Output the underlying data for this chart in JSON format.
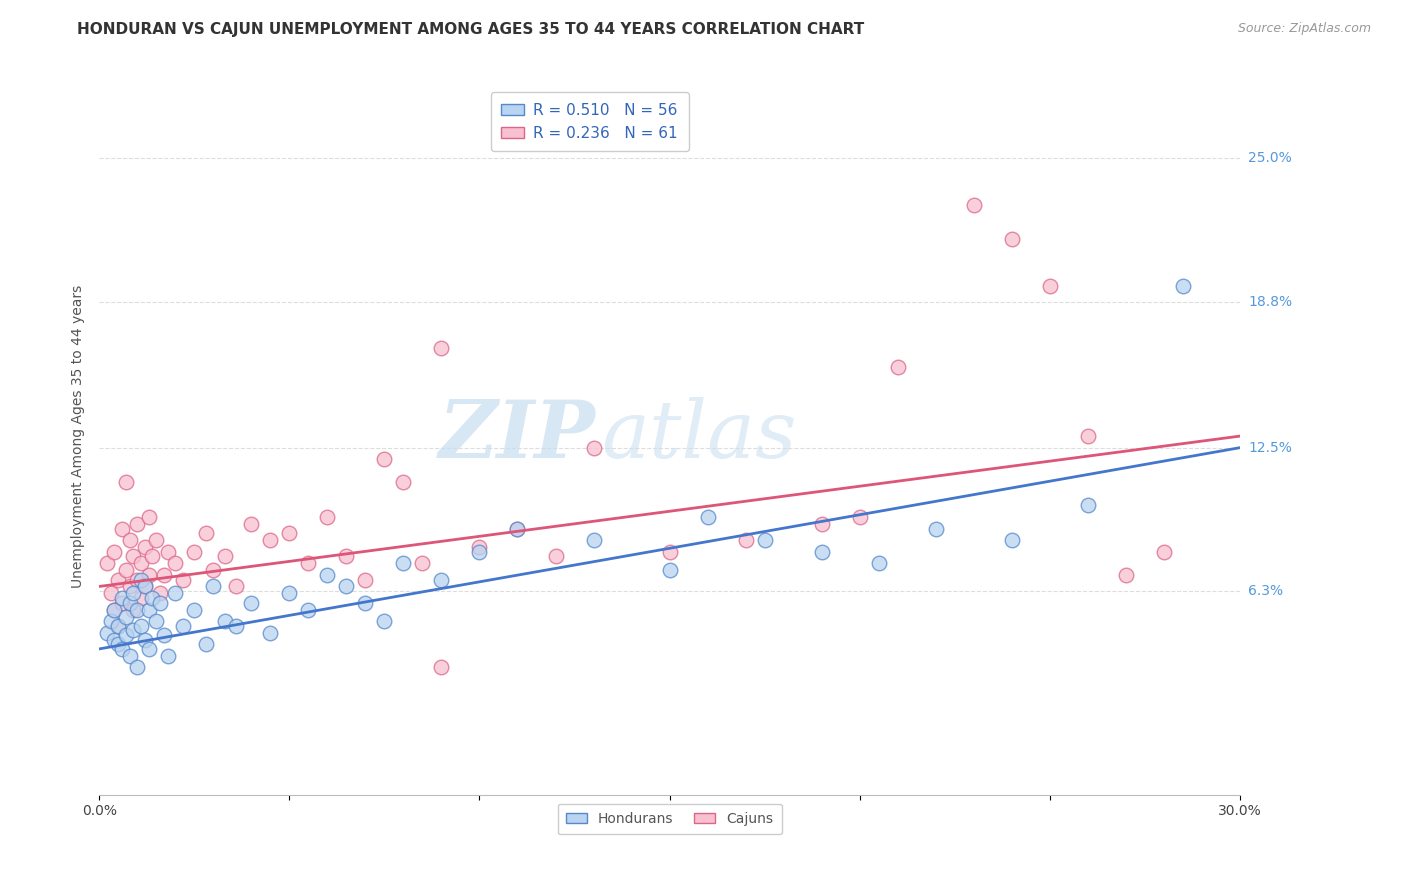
{
  "title": "HONDURAN VS CAJUN UNEMPLOYMENT AMONG AGES 35 TO 44 YEARS CORRELATION CHART",
  "source": "Source: ZipAtlas.com",
  "ylabel": "Unemployment Among Ages 35 to 44 years",
  "xlim": [
    0.0,
    0.3
  ],
  "ylim": [
    -0.025,
    0.285
  ],
  "honduran_R": 0.51,
  "honduran_N": 56,
  "cajun_R": 0.236,
  "cajun_N": 61,
  "honduran_color": "#b8d4f0",
  "cajun_color": "#f8c0d0",
  "honduran_edge_color": "#5588cc",
  "cajun_edge_color": "#dd6688",
  "honduran_line_color": "#4477cc",
  "cajun_line_color": "#dd5577",
  "background_color": "#ffffff",
  "grid_color": "#dddddd",
  "ytick_labels_right": [
    "6.3%",
    "12.5%",
    "18.8%",
    "25.0%"
  ],
  "ytick_values_right": [
    0.063,
    0.125,
    0.188,
    0.25
  ],
  "watermark_zip": "ZIP",
  "watermark_atlas": "atlas",
  "title_fontsize": 11,
  "label_fontsize": 10,
  "tick_fontsize": 10,
  "legend_fontsize": 11,
  "honduran_x": [
    0.002,
    0.003,
    0.004,
    0.004,
    0.005,
    0.005,
    0.006,
    0.006,
    0.007,
    0.007,
    0.008,
    0.008,
    0.009,
    0.009,
    0.01,
    0.01,
    0.011,
    0.011,
    0.012,
    0.012,
    0.013,
    0.013,
    0.014,
    0.015,
    0.016,
    0.017,
    0.018,
    0.02,
    0.022,
    0.025,
    0.028,
    0.03,
    0.033,
    0.036,
    0.04,
    0.045,
    0.05,
    0.055,
    0.06,
    0.065,
    0.07,
    0.075,
    0.08,
    0.09,
    0.1,
    0.11,
    0.13,
    0.15,
    0.16,
    0.175,
    0.19,
    0.205,
    0.22,
    0.24,
    0.26,
    0.285
  ],
  "honduran_y": [
    0.045,
    0.05,
    0.055,
    0.042,
    0.048,
    0.04,
    0.06,
    0.038,
    0.052,
    0.044,
    0.058,
    0.035,
    0.062,
    0.046,
    0.055,
    0.03,
    0.048,
    0.068,
    0.042,
    0.065,
    0.055,
    0.038,
    0.06,
    0.05,
    0.058,
    0.044,
    0.035,
    0.062,
    0.048,
    0.055,
    0.04,
    0.065,
    0.05,
    0.048,
    0.058,
    0.045,
    0.062,
    0.055,
    0.07,
    0.065,
    0.058,
    0.05,
    0.075,
    0.068,
    0.08,
    0.09,
    0.085,
    0.072,
    0.095,
    0.085,
    0.08,
    0.075,
    0.09,
    0.085,
    0.1,
    0.195
  ],
  "cajun_x": [
    0.002,
    0.003,
    0.004,
    0.004,
    0.005,
    0.005,
    0.006,
    0.006,
    0.007,
    0.007,
    0.008,
    0.008,
    0.009,
    0.009,
    0.01,
    0.01,
    0.011,
    0.011,
    0.012,
    0.012,
    0.013,
    0.013,
    0.014,
    0.015,
    0.016,
    0.017,
    0.018,
    0.02,
    0.022,
    0.025,
    0.028,
    0.03,
    0.033,
    0.036,
    0.04,
    0.045,
    0.05,
    0.055,
    0.06,
    0.065,
    0.07,
    0.075,
    0.08,
    0.085,
    0.09,
    0.1,
    0.11,
    0.12,
    0.13,
    0.15,
    0.17,
    0.19,
    0.2,
    0.21,
    0.23,
    0.24,
    0.25,
    0.26,
    0.27,
    0.28,
    0.09
  ],
  "cajun_y": [
    0.075,
    0.062,
    0.08,
    0.055,
    0.068,
    0.048,
    0.09,
    0.058,
    0.11,
    0.072,
    0.065,
    0.085,
    0.078,
    0.055,
    0.068,
    0.092,
    0.075,
    0.06,
    0.082,
    0.065,
    0.095,
    0.07,
    0.078,
    0.085,
    0.062,
    0.07,
    0.08,
    0.075,
    0.068,
    0.08,
    0.088,
    0.072,
    0.078,
    0.065,
    0.092,
    0.085,
    0.088,
    0.075,
    0.095,
    0.078,
    0.068,
    0.12,
    0.11,
    0.075,
    0.168,
    0.082,
    0.09,
    0.078,
    0.125,
    0.08,
    0.085,
    0.092,
    0.095,
    0.16,
    0.23,
    0.215,
    0.195,
    0.13,
    0.07,
    0.08,
    0.03
  ]
}
